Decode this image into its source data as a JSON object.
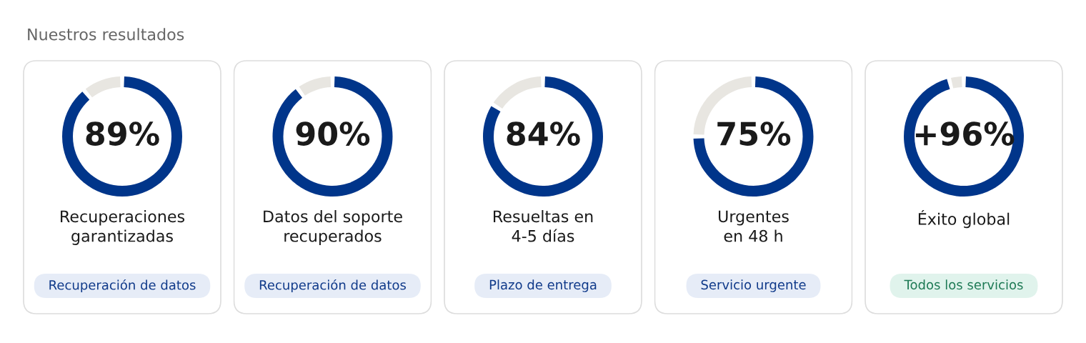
{
  "chart_data": [
    {
      "type": "donut",
      "title": "Nuestros resultados",
      "categories": [
        null,
        null
      ],
      "values": [
        89,
        11
      ],
      "colors": [
        "#00358a",
        "#e8e6e1"
      ],
      "xlabel": "Recuperaciones\ngarantizadas",
      "annotations": [
        "89%",
        "Recuperación de datos"
      ]
    },
    {
      "type": "donut",
      "categories": [
        null,
        null
      ],
      "values": [
        90,
        10
      ],
      "colors": [
        "#00358a",
        "#e8e6e1"
      ],
      "xlabel": "Datos del soporte\nrecuperados",
      "annotations": [
        "90%",
        "Recuperación de datos"
      ]
    },
    {
      "type": "donut",
      "categories": [
        null,
        null
      ],
      "values": [
        84,
        16
      ],
      "colors": [
        "#00358a",
        "#e8e6e1"
      ],
      "xlabel": "Resueltas en\n4-5 días",
      "annotations": [
        "84%",
        "Plazo de entrega"
      ]
    },
    {
      "type": "donut",
      "categories": [
        null,
        null
      ],
      "values": [
        75,
        25
      ],
      "colors": [
        "#00358a",
        "#e8e6e1"
      ],
      "xlabel": "Urgentes\nen 48 h",
      "annotations": [
        "75%",
        "Servicio urgente"
      ]
    },
    {
      "type": "donut",
      "categories": [
        null,
        null
      ],
      "values": [
        96,
        4
      ],
      "colors": [
        "#00358a",
        "#e8e6e1"
      ],
      "xlabel": "Éxito global",
      "annotations": [
        "+96%",
        "Todos los servicios"
      ]
    }
  ]
}
